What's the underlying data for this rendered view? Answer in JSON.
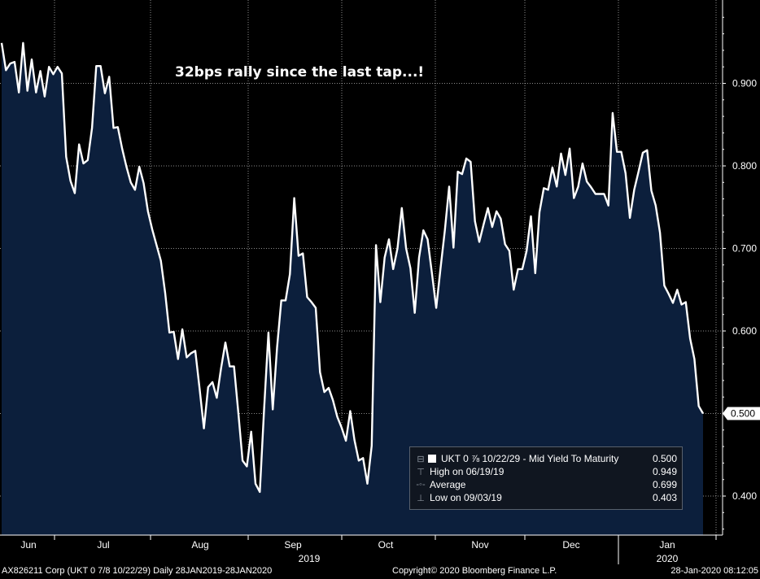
{
  "chart_data": {
    "type": "area",
    "title": "",
    "annotation": "32bps rally since the last tap...!",
    "ylim": [
      0.35,
      1.0
    ],
    "y_ticks": [
      0.4,
      0.5,
      0.6,
      0.7,
      0.8,
      0.9
    ],
    "y_tick_labels": [
      "0.400",
      "0.500",
      "0.600",
      "0.700",
      "0.800",
      "0.900"
    ],
    "last_value_label": "0.500",
    "month_labels": [
      "Jun",
      "Jul",
      "Aug",
      "Sep",
      "Oct",
      "Nov",
      "Dec",
      "Jan"
    ],
    "year_labels": [
      "2019",
      "2020"
    ],
    "series": [
      {
        "name": "UKT 0 7/8 10/22/29 - Mid Yield To Maturity",
        "color": "#ffffff",
        "fill": "#0c1f3c",
        "values": [
          0.949,
          0.916,
          0.924,
          0.926,
          0.889,
          0.949,
          0.891,
          0.929,
          0.889,
          0.915,
          0.884,
          0.92,
          0.911,
          0.92,
          0.912,
          0.811,
          0.782,
          0.767,
          0.826,
          0.803,
          0.807,
          0.846,
          0.921,
          0.921,
          0.888,
          0.908,
          0.846,
          0.847,
          0.821,
          0.799,
          0.78,
          0.771,
          0.799,
          0.779,
          0.745,
          0.723,
          0.704,
          0.685,
          0.646,
          0.598,
          0.599,
          0.566,
          0.602,
          0.568,
          0.573,
          0.576,
          0.53,
          0.482,
          0.532,
          0.538,
          0.519,
          0.555,
          0.586,
          0.557,
          0.557,
          0.501,
          0.443,
          0.436,
          0.478,
          0.415,
          0.405,
          0.506,
          0.598,
          0.505,
          0.58,
          0.637,
          0.637,
          0.669,
          0.761,
          0.691,
          0.694,
          0.641,
          0.635,
          0.628,
          0.55,
          0.526,
          0.531,
          0.516,
          0.496,
          0.483,
          0.467,
          0.503,
          0.468,
          0.443,
          0.446,
          0.415,
          0.461,
          0.704,
          0.635,
          0.689,
          0.711,
          0.675,
          0.7,
          0.749,
          0.7,
          0.676,
          0.622,
          0.689,
          0.722,
          0.711,
          0.67,
          0.628,
          0.676,
          0.722,
          0.775,
          0.701,
          0.793,
          0.79,
          0.809,
          0.805,
          0.733,
          0.708,
          0.729,
          0.749,
          0.726,
          0.745,
          0.736,
          0.705,
          0.697,
          0.65,
          0.675,
          0.675,
          0.697,
          0.739,
          0.67,
          0.744,
          0.773,
          0.771,
          0.798,
          0.775,
          0.815,
          0.789,
          0.821,
          0.761,
          0.775,
          0.803,
          0.781,
          0.774,
          0.766,
          0.766,
          0.766,
          0.752,
          0.864,
          0.817,
          0.817,
          0.791,
          0.737,
          0.771,
          0.793,
          0.816,
          0.819,
          0.77,
          0.752,
          0.719,
          0.655,
          0.645,
          0.634,
          0.65,
          0.632,
          0.635,
          0.591,
          0.566,
          0.509,
          0.5
        ]
      }
    ],
    "legend": {
      "name_prefix": "UKT 0",
      "fraction": "⅞",
      "name_suffix": "10/22/29 - Mid Yield To Maturity",
      "value": "0.500",
      "rows": [
        {
          "label": "High on 06/19/19",
          "value": "0.949",
          "icon": "high-marker-icon"
        },
        {
          "label": "Average",
          "value": "0.699",
          "icon": "average-marker-icon"
        },
        {
          "label": "Low on 09/03/19",
          "value": "0.403",
          "icon": "low-marker-icon"
        }
      ]
    },
    "grid": true,
    "colors": {
      "background": "#000000",
      "line": "#ffffff",
      "area": "#0c1f3c",
      "grid": "#ffffff"
    }
  },
  "footer": {
    "left": "AX826211 Corp (UKT 0 7/8 10/22/29)  Daily 28JAN2019-28JAN2020",
    "center": "Copyright© 2020 Bloomberg Finance L.P.",
    "right": "28-Jan-2020 08:12:05"
  }
}
